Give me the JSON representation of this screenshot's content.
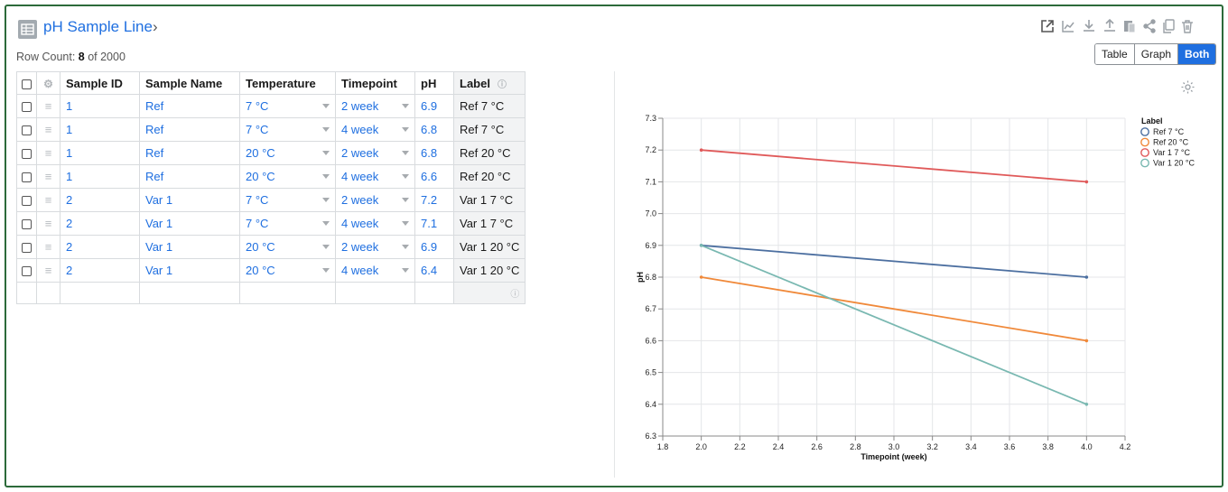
{
  "header": {
    "title": "pH Sample Line",
    "chevron": "›",
    "row_count_prefix": "Row Count: ",
    "row_count": "8",
    "row_count_suffix": " of 2000"
  },
  "toolbar": {
    "icons": [
      "expand-icon",
      "chart-icon",
      "download-icon",
      "upload-icon",
      "paste-icon",
      "share-icon",
      "copy-icon",
      "trash-icon"
    ],
    "view_options": [
      "Table",
      "Graph",
      "Both"
    ],
    "active_view": "Both"
  },
  "table": {
    "columns": [
      "Sample ID",
      "Sample Name",
      "Temperature",
      "Timepoint",
      "pH",
      "Label"
    ],
    "rows": [
      {
        "id": "1",
        "name": "Ref",
        "temp": "7 °C",
        "time": "2 week",
        "ph": "6.9",
        "label": "Ref 7 °C"
      },
      {
        "id": "1",
        "name": "Ref",
        "temp": "7 °C",
        "time": "4 week",
        "ph": "6.8",
        "label": "Ref 7 °C"
      },
      {
        "id": "1",
        "name": "Ref",
        "temp": "20 °C",
        "time": "2 week",
        "ph": "6.8",
        "label": "Ref 20 °C"
      },
      {
        "id": "1",
        "name": "Ref",
        "temp": "20 °C",
        "time": "4 week",
        "ph": "6.6",
        "label": "Ref 20 °C"
      },
      {
        "id": "2",
        "name": "Var 1",
        "temp": "7 °C",
        "time": "2 week",
        "ph": "7.2",
        "label": "Var 1 7 °C"
      },
      {
        "id": "2",
        "name": "Var 1",
        "temp": "7 °C",
        "time": "4 week",
        "ph": "7.1",
        "label": "Var 1 7 °C"
      },
      {
        "id": "2",
        "name": "Var 1",
        "temp": "20 °C",
        "time": "2 week",
        "ph": "6.9",
        "label": "Var 1 20 °C"
      },
      {
        "id": "2",
        "name": "Var 1",
        "temp": "20 °C",
        "time": "4 week",
        "ph": "6.4",
        "label": "Var 1 20 °C"
      }
    ]
  },
  "chart_data": {
    "type": "line",
    "xlabel": "Timepoint (week)",
    "ylabel": "pH",
    "xlim": [
      1.8,
      4.2
    ],
    "ylim": [
      6.3,
      7.3
    ],
    "xticks": [
      "1.8",
      "2.0",
      "2.2",
      "2.4",
      "2.6",
      "2.8",
      "3.0",
      "3.2",
      "3.4",
      "3.6",
      "3.8",
      "4.0",
      "4.2"
    ],
    "yticks": [
      "6.3",
      "6.4",
      "6.5",
      "6.6",
      "6.7",
      "6.8",
      "6.9",
      "7.0",
      "7.1",
      "7.2",
      "7.3"
    ],
    "grid": true,
    "legend_title": "Label",
    "legend_position": "top-right",
    "series": [
      {
        "name": "Ref 7 °C",
        "color": "#4c6fa0",
        "x": [
          2,
          4
        ],
        "y": [
          6.9,
          6.8
        ]
      },
      {
        "name": "Ref 20 °C",
        "color": "#f0893a",
        "x": [
          2,
          4
        ],
        "y": [
          6.8,
          6.6
        ]
      },
      {
        "name": "Var 1 7 °C",
        "color": "#e05a5a",
        "x": [
          2,
          4
        ],
        "y": [
          7.2,
          7.1
        ]
      },
      {
        "name": "Var 1 20 °C",
        "color": "#79b8b1",
        "x": [
          2,
          4
        ],
        "y": [
          6.9,
          6.4
        ]
      }
    ]
  }
}
